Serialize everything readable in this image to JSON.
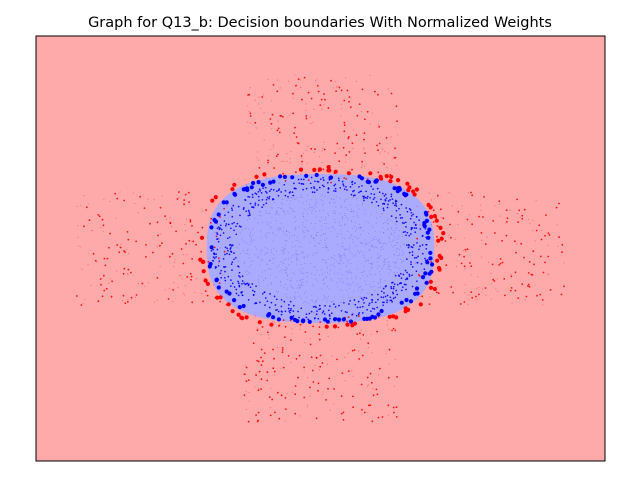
{
  "chart_data": {
    "type": "scatter",
    "title": "Graph for Q13_b: Decision boundaries With Normalized Weights",
    "xlabel": "",
    "ylabel": "",
    "xlim": [
      -7,
      7
    ],
    "ylim": [
      -6,
      6
    ],
    "axis_ticks": "hidden",
    "grid": false,
    "legend": "none",
    "background_regions": [
      {
        "class": "outside",
        "color": "#ffaaaa"
      },
      {
        "class": "inside",
        "color": "#aaaaff",
        "shape": "ellipse",
        "center": [
          0,
          0
        ],
        "radius_x": 2.8,
        "radius_y": 2.1
      }
    ],
    "series": [
      {
        "role": "cross-shaped points (class 0)",
        "color": "#ff0000",
        "clusters": [
          {
            "x_range": [
              -1.9,
              1.9
            ],
            "y_range": [
              1.8,
              4.9
            ],
            "count": 220
          },
          {
            "x_range": [
              -1.9,
              1.9
            ],
            "y_range": [
              -4.9,
              -1.8
            ],
            "count": 220
          },
          {
            "x_range": [
              -6.0,
              -2.3
            ],
            "y_range": [
              -1.6,
              1.6
            ],
            "count": 200
          },
          {
            "x_range": [
              2.3,
              6.0
            ],
            "y_range": [
              -1.6,
              1.6
            ],
            "count": 200
          }
        ]
      },
      {
        "role": "disc-shaped points (class 1)",
        "color": "#0000ff",
        "clusters": [
          {
            "shape": "disc",
            "center": [
              0,
              0
            ],
            "radius_x": 2.8,
            "radius_y": 2.1,
            "count": 1400
          }
        ]
      },
      {
        "role": "boundary support points",
        "colors": [
          "#ff0000",
          "#0000ff"
        ],
        "ring": {
          "center": [
            0,
            0
          ],
          "radius_x": 2.85,
          "radius_y": 2.15
        }
      }
    ]
  }
}
